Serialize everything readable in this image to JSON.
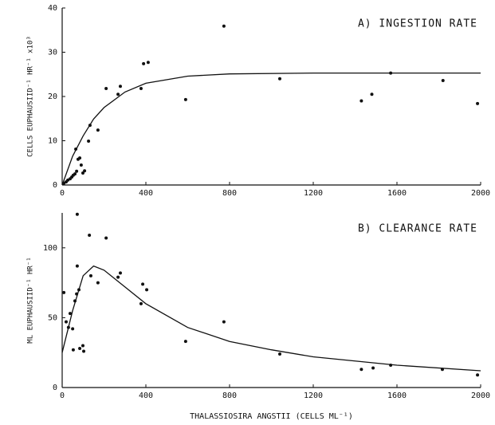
{
  "chart_data": [
    {
      "type": "scatter",
      "title": "A) INGESTION RATE",
      "y_label": "CELLS EUPHAUSIID⁻¹ HR⁻¹ x10³",
      "xlim": [
        0,
        2000
      ],
      "xticks": [
        0,
        400,
        800,
        1200,
        1600,
        2000
      ],
      "ylim": [
        0,
        40
      ],
      "yticks": [
        0,
        10,
        20,
        30,
        40
      ],
      "color": "#111111",
      "x": [
        8,
        19,
        27,
        38,
        46,
        53,
        61,
        69,
        65,
        76,
        84,
        91,
        99,
        107,
        126,
        133,
        171,
        210,
        267,
        278,
        377,
        389,
        411,
        590,
        773,
        1040,
        1430,
        1480,
        1570,
        1820,
        1985
      ],
      "values": [
        0.4,
        0.7,
        1.1,
        1.4,
        1.8,
        2.2,
        2.5,
        3.1,
        8.1,
        5.8,
        6.1,
        4.5,
        2.7,
        3.2,
        9.9,
        13.5,
        12.4,
        21.8,
        20.5,
        22.3,
        21.8,
        27.4,
        27.7,
        19.3,
        35.9,
        24,
        19,
        20.5,
        25.3,
        23.6,
        18.4
      ],
      "curve": {
        "x": [
          0,
          50,
          100,
          150,
          200,
          300,
          400,
          600,
          800,
          1200,
          1600,
          2000
        ],
        "values": [
          0,
          6.5,
          11.1,
          14.9,
          17.5,
          21,
          23,
          24.6,
          25.1,
          25.3,
          25.3,
          25.3
        ]
      }
    },
    {
      "type": "scatter",
      "title": "B) CLEARANCE RATE",
      "y_label": "ML EUPHAUSIID⁻¹ HR⁻¹",
      "x_label": "THALASSIOSIRA ANGSTII  (CELLS ML⁻¹)",
      "xlim": [
        0,
        2000
      ],
      "xticks": [
        0,
        400,
        800,
        1200,
        1600,
        2000
      ],
      "ylim": [
        0,
        125
      ],
      "yticks": [
        0,
        50,
        100
      ],
      "color": "#111111",
      "x": [
        8,
        19,
        30,
        38,
        50,
        53,
        61,
        69,
        72,
        72,
        80,
        84,
        99,
        103,
        130,
        137,
        171,
        210,
        267,
        278,
        377,
        385,
        404,
        590,
        773,
        1040,
        1430,
        1486,
        1570,
        1817,
        1985
      ],
      "values": [
        68,
        47,
        43,
        53,
        42,
        27,
        62,
        67,
        124,
        87,
        70,
        28,
        30,
        26,
        109,
        80,
        75,
        107,
        79,
        82,
        60,
        74,
        70,
        33,
        47,
        24,
        13,
        14,
        16,
        13,
        9
      ],
      "curve": {
        "x": [
          0,
          50,
          100,
          150,
          200,
          300,
          400,
          600,
          800,
          1000,
          1200,
          1600,
          2000
        ],
        "values": [
          25,
          55,
          80,
          87,
          84,
          72,
          60,
          43,
          33,
          27,
          22,
          16,
          12
        ]
      }
    }
  ]
}
